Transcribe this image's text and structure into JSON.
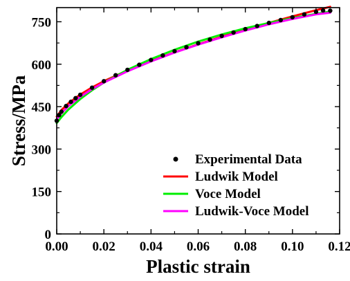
{
  "chart_data": {
    "type": "line",
    "title": "",
    "xlabel": "Plastic strain",
    "ylabel": "Stress/MPa",
    "xlim": [
      0.0,
      0.12
    ],
    "ylim": [
      0,
      800
    ],
    "xticks": [
      0.0,
      0.02,
      0.04,
      0.06,
      0.08,
      0.1,
      0.12
    ],
    "xtick_labels": [
      "0.00",
      "0.02",
      "0.04",
      "0.06",
      "0.08",
      "0.10",
      "0.12"
    ],
    "yticks": [
      0,
      150,
      300,
      450,
      600,
      750
    ],
    "ytick_labels": [
      "0",
      "150",
      "300",
      "450",
      "600",
      "750"
    ],
    "grid": false,
    "legend_position": "bottom-right",
    "series": [
      {
        "name": "Experimental Data",
        "style": "points",
        "color": "#000000",
        "x": [
          0.0,
          0.001,
          0.002,
          0.004,
          0.006,
          0.008,
          0.01,
          0.015,
          0.02,
          0.025,
          0.03,
          0.035,
          0.04,
          0.045,
          0.05,
          0.055,
          0.06,
          0.065,
          0.07,
          0.075,
          0.08,
          0.085,
          0.09,
          0.095,
          0.1,
          0.105,
          0.11,
          0.113,
          0.116
        ],
        "y": [
          400,
          420,
          432,
          452,
          467,
          480,
          492,
          517,
          540,
          561,
          580,
          598,
          615,
          631,
          646,
          660,
          674,
          687,
          700,
          712,
          724,
          735,
          746,
          756,
          766,
          776,
          785,
          790,
          789
        ]
      },
      {
        "name": "Ludwik Model",
        "style": "line",
        "color": "#ff0000",
        "x": [
          0.0,
          0.002,
          0.005,
          0.01,
          0.015,
          0.02,
          0.03,
          0.04,
          0.05,
          0.06,
          0.07,
          0.08,
          0.09,
          0.1,
          0.11,
          0.116
        ],
        "y": [
          415,
          438,
          462,
          493,
          518,
          540,
          578,
          611,
          642,
          670,
          697,
          722,
          746,
          769,
          791,
          803
        ]
      },
      {
        "name": "Voce Model",
        "style": "line",
        "color": "#00ee00",
        "x": [
          0.0,
          0.002,
          0.005,
          0.01,
          0.015,
          0.02,
          0.03,
          0.04,
          0.05,
          0.06,
          0.07,
          0.08,
          0.09,
          0.1,
          0.11,
          0.116
        ],
        "y": [
          392,
          413,
          440,
          477,
          508,
          535,
          580,
          618,
          651,
          680,
          705,
          727,
          746,
          763,
          778,
          786
        ]
      },
      {
        "name": "Ludwik-Voce Model",
        "style": "line",
        "color": "#ff00ff",
        "x": [
          0.0,
          0.002,
          0.005,
          0.01,
          0.015,
          0.02,
          0.03,
          0.04,
          0.05,
          0.06,
          0.07,
          0.08,
          0.09,
          0.1,
          0.11,
          0.116
        ],
        "y": [
          405,
          426,
          452,
          485,
          512,
          535,
          575,
          610,
          641,
          669,
          695,
          719,
          741,
          760,
          776,
          782
        ]
      }
    ]
  }
}
